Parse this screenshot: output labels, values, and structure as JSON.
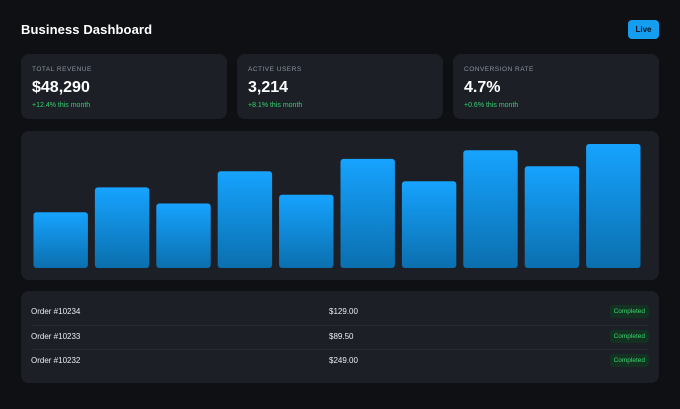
{
  "header": {
    "title": "Business Dashboard",
    "live_label": "Live"
  },
  "stats": [
    {
      "label": "TOTAL REVENUE",
      "value": "$48,290",
      "delta": "+12.4% this month"
    },
    {
      "label": "ACTIVE USERS",
      "value": "3,214",
      "delta": "+8.1% this month"
    },
    {
      "label": "CONVERSION RATE",
      "value": "4.7%",
      "delta": "+0.6% this month"
    }
  ],
  "colors": {
    "accent": "#159ef0",
    "positive": "#34d06f",
    "panel": "#1c2026",
    "background": "#0e1014"
  },
  "chart_data": {
    "type": "bar",
    "values": [
      45,
      65,
      52,
      78,
      59,
      88,
      70,
      95,
      82,
      100
    ],
    "ylim": [
      0,
      100
    ],
    "grid": false
  },
  "orders": [
    {
      "id": "Order #10234",
      "amount": "$129.00",
      "status": "Completed"
    },
    {
      "id": "Order #10233",
      "amount": "$89.50",
      "status": "Completed"
    },
    {
      "id": "Order #10232",
      "amount": "$249.00",
      "status": "Completed"
    }
  ]
}
